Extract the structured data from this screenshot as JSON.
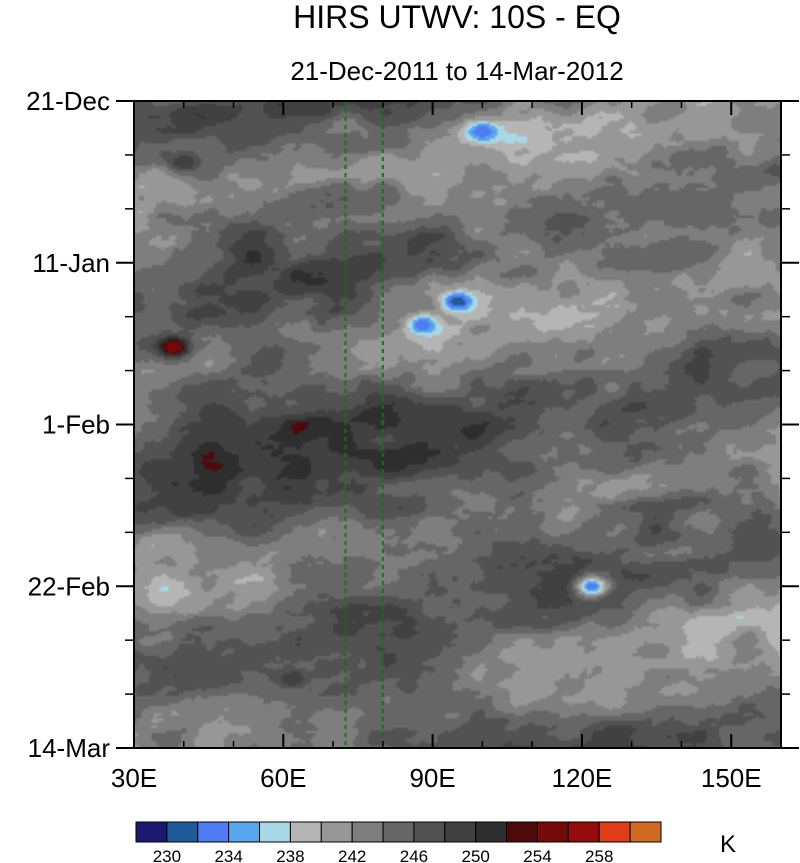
{
  "chart_data": {
    "type": "heatmap",
    "title": "HIRS UTWV: 10S - EQ",
    "subtitle": "21-Dec-2011 to 14-Mar-2012",
    "xlabel": "",
    "ylabel": "",
    "x_range": [
      30,
      160
    ],
    "x_ticks": [
      {
        "value": 30,
        "label": "30E"
      },
      {
        "value": 60,
        "label": "60E"
      },
      {
        "value": 90,
        "label": "90E"
      },
      {
        "value": 120,
        "label": "120E"
      },
      {
        "value": 150,
        "label": "150E"
      }
    ],
    "y_range_days": [
      0,
      84
    ],
    "y_ticks": [
      {
        "day": 0,
        "label": "21-Dec"
      },
      {
        "day": 21,
        "label": "11-Jan"
      },
      {
        "day": 42,
        "label": "1-Feb"
      },
      {
        "day": 63,
        "label": "22-Feb"
      },
      {
        "day": 84,
        "label": "14-Mar"
      }
    ],
    "reference_lines_lon": [
      72.5,
      80
    ],
    "colorbar": {
      "units": "K",
      "colors": [
        "#1a1a6e",
        "#1f5a99",
        "#4f7cf2",
        "#58a6ec",
        "#a8d8e6",
        "#b5b5b5",
        "#979797",
        "#7e7e7e",
        "#666666",
        "#525252",
        "#414141",
        "#2e2e2e",
        "#4e0a0a",
        "#750a0a",
        "#960b0b",
        "#e03d18",
        "#d06a20"
      ],
      "levels": [
        230,
        232,
        234,
        236,
        238,
        240,
        242,
        244,
        246,
        248,
        250,
        252,
        254,
        256,
        258,
        260
      ],
      "tick_labels": [
        "230",
        "234",
        "238",
        "242",
        "246",
        "250",
        "254",
        "258"
      ]
    },
    "field": {
      "description": "Hovmoller of upper-tropospheric water vapour brightness temperature (K), longitude vs time",
      "features": [
        {
          "lon": 95,
          "day": 26,
          "value": 230
        },
        {
          "lon": 100,
          "day": 4,
          "value": 232
        },
        {
          "lon": 88,
          "day": 29,
          "value": 232
        },
        {
          "lon": 122,
          "day": 63,
          "value": 232
        },
        {
          "lon": 38,
          "day": 32,
          "value": 256
        },
        {
          "lon": 40,
          "day": 8,
          "value": 250
        },
        {
          "lon": 34,
          "day": 48,
          "value": 250
        },
        {
          "lon": 62,
          "day": 75,
          "value": 250
        },
        {
          "lon": 65,
          "day": 38,
          "value": 247
        },
        {
          "lon": 80,
          "day": 12,
          "value": 246
        }
      ]
    }
  }
}
